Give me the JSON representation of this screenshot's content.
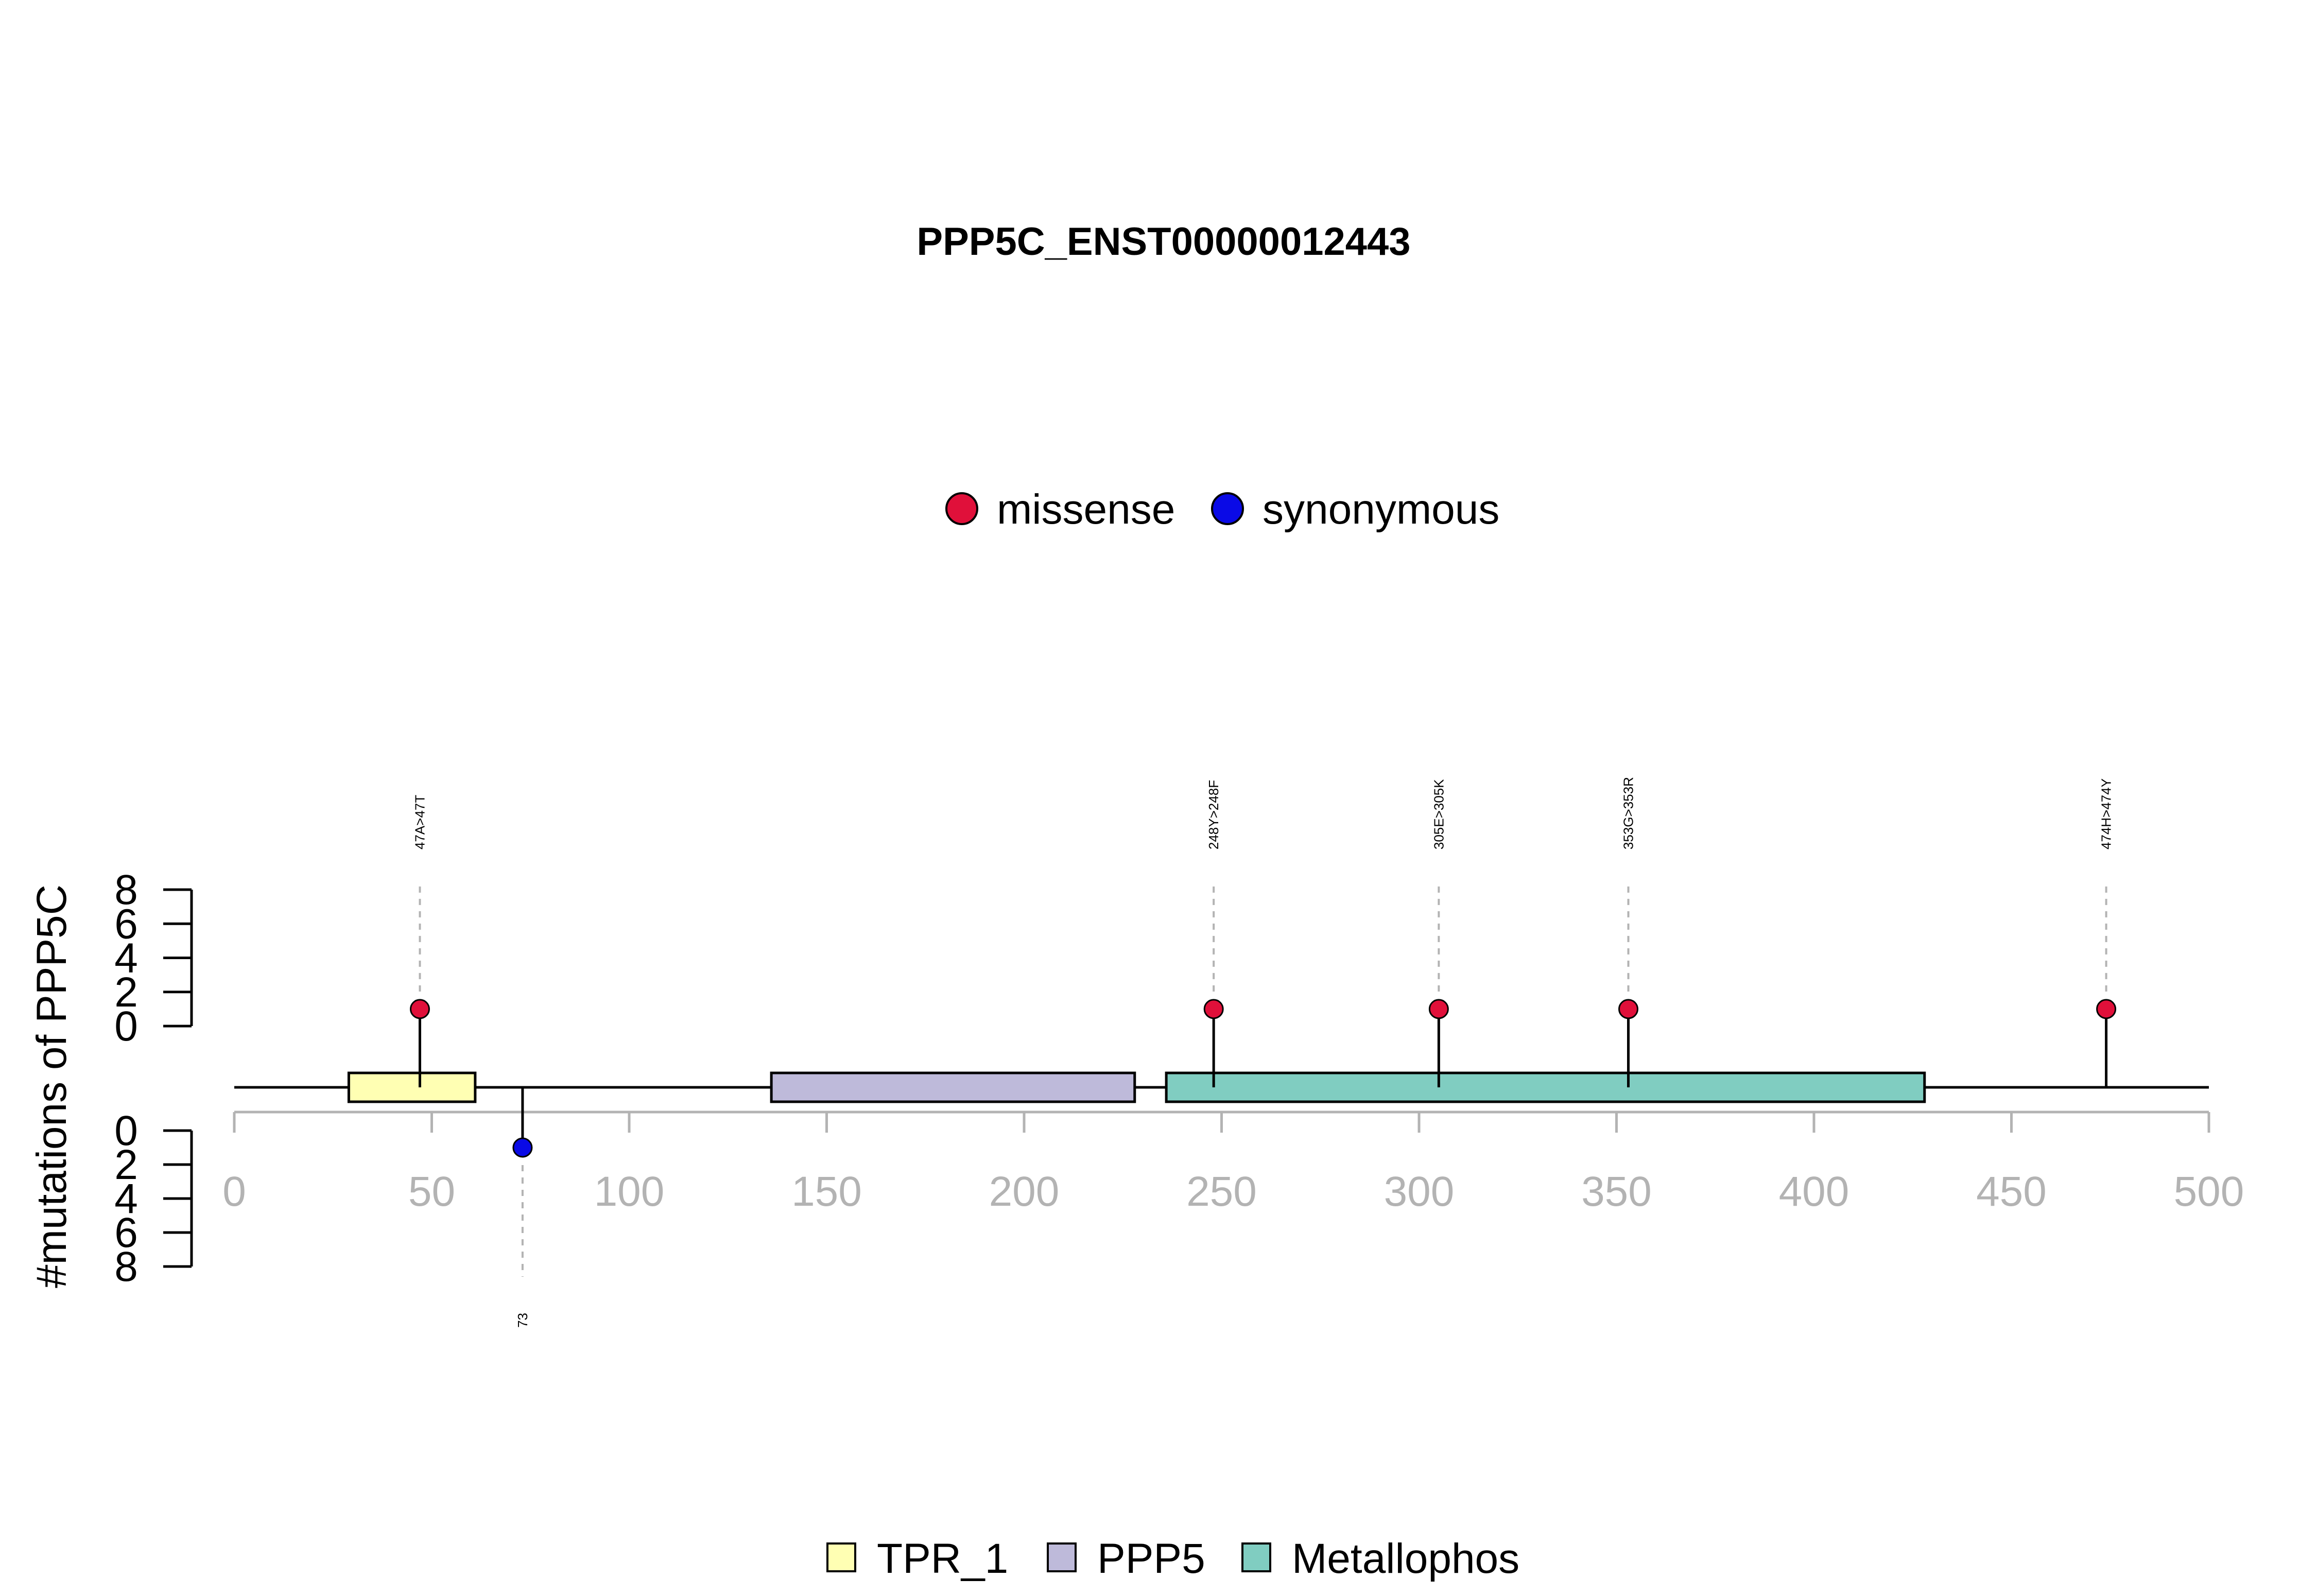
{
  "chart_data": {
    "type": "lollipop",
    "title": "PPP5C_ENST00000012443",
    "ylabel": "#mutations of PPP5C",
    "xlim": [
      0,
      500
    ],
    "x_ticks": [
      0,
      50,
      100,
      150,
      200,
      250,
      300,
      350,
      400,
      450,
      500
    ],
    "ylim_top": [
      0,
      8
    ],
    "ylim_bottom": [
      0,
      8
    ],
    "y_ticks_top": [
      0,
      2,
      4,
      6,
      8
    ],
    "y_ticks_bottom": [
      0,
      2,
      4,
      6,
      8
    ],
    "legend_mutations": [
      {
        "label": "missense",
        "color": "#e0103a"
      },
      {
        "label": "synonymous",
        "color": "#0a0ae6"
      }
    ],
    "legend_domains": [
      {
        "label": "TPR_1",
        "color": "#ffffb3"
      },
      {
        "label": "PPP5",
        "color": "#bebada"
      },
      {
        "label": "Metallophos",
        "color": "#80cdc1"
      }
    ],
    "domains": [
      {
        "name": "TPR_1",
        "start": 29,
        "end": 61,
        "color": "#ffffb3"
      },
      {
        "name": "PPP5",
        "start": 136,
        "end": 228,
        "color": "#bebada"
      },
      {
        "name": "Metallophos",
        "start": 236,
        "end": 428,
        "color": "#80cdc1"
      }
    ],
    "mutations": [
      {
        "pos": 47,
        "count": 1,
        "type": "missense",
        "label": "47A>47T",
        "side": "top"
      },
      {
        "pos": 73,
        "count": 1,
        "type": "synonymous",
        "label": "73",
        "side": "bottom"
      },
      {
        "pos": 248,
        "count": 1,
        "type": "missense",
        "label": "248Y>248F",
        "side": "top"
      },
      {
        "pos": 305,
        "count": 1,
        "type": "missense",
        "label": "305E>305K",
        "side": "top"
      },
      {
        "pos": 353,
        "count": 1,
        "type": "missense",
        "label": "353G>353R",
        "side": "top"
      },
      {
        "pos": 474,
        "count": 1,
        "type": "missense",
        "label": "474H>474Y",
        "side": "top"
      }
    ]
  }
}
